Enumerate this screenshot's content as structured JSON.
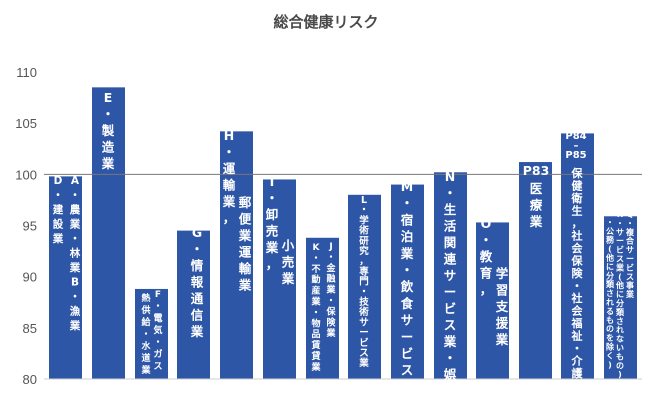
{
  "chart_data": {
    "type": "bar",
    "title": "総合健康リスク",
    "xlabel": "",
    "ylabel": "",
    "ylim": [
      80,
      112
    ],
    "yticks": [
      80,
      85,
      90,
      95,
      100,
      105,
      110
    ],
    "reference_line": 100,
    "bar_color": "#2e56a6",
    "categories": [
      "D・建設業",
      "A・農業・林業 B・漁業",
      "E・製造業",
      "F・電気・ガス 熱供給・水道業",
      "G・情報通信業",
      "H・運輸業，郵便業運輸業",
      "I・卸売業，小売業",
      "J・金融業・保険業 K・不動産業・物品賃貸業",
      "L・学術研究，専門・技術サービス業",
      "M・宿泊業・飲食サービス業",
      "N・生活関連サービス業・娯楽業",
      "O・教育，学習支援業",
      "P83 医療業",
      "P84-P85 保健衛生，社会保険・社会福祉・介護事業",
      "Q・複合サービス事業 R・サービス業(他に分類されないもの) S・公務(他に分類されるものを除く)"
    ],
    "values": [
      99.8,
      99.8,
      108.5,
      88.8,
      94.5,
      104.2,
      99.5,
      93.8,
      98.0,
      99.0,
      100.2,
      95.3,
      101.2,
      104.0,
      95.9
    ],
    "label_lines": [
      [
        "D",
        "・",
        "建",
        "設",
        "業"
      ],
      [
        "A",
        "・",
        "農",
        "業",
        "・",
        "林",
        "業",
        "B",
        "・",
        "漁",
        "業"
      ],
      [
        "E",
        "・",
        "製",
        "造",
        "業"
      ],
      [
        "F",
        "・",
        "電",
        "気",
        "・",
        "ガ",
        "ス"
      ],
      [
        "熱",
        "供",
        "給",
        "・",
        "水",
        "道",
        "業"
      ],
      [
        "G",
        "・",
        "情",
        "報",
        "通",
        "信",
        "業"
      ],
      [
        "H",
        "・",
        "運",
        "輸",
        "業",
        "，"
      ],
      [
        "郵",
        "便",
        "業",
        "運",
        "輸",
        "業"
      ],
      [
        "I",
        "・",
        "卸",
        "売",
        "業",
        "，"
      ],
      [
        "小",
        "売",
        "業"
      ],
      [
        "J",
        "・",
        "金",
        "融",
        "業",
        "・",
        "保",
        "険",
        "業"
      ],
      [
        "K",
        "・",
        "不",
        "動",
        "産",
        "業",
        "・",
        "物",
        "品",
        "賃",
        "貸",
        "業"
      ],
      [
        "L",
        "・",
        "学",
        "術",
        "研",
        "究",
        "，",
        "専",
        "門",
        "・",
        "技",
        "術",
        "サ",
        "ー",
        "ビ",
        "ス",
        "業"
      ],
      [
        "M",
        "・",
        "宿",
        "泊",
        "業",
        "・",
        "飲",
        "食",
        "サ",
        "ー",
        "ビ",
        "ス",
        "業"
      ],
      [
        "N",
        "・",
        "生",
        "活",
        "関",
        "連",
        "サ",
        "ー",
        "ビ",
        "ス",
        "業",
        "・",
        "娯",
        "楽",
        "業"
      ],
      [
        "O",
        "・",
        "教",
        "育",
        "，"
      ],
      [
        "学",
        "習",
        "支",
        "援",
        "業"
      ],
      [
        "P83"
      ],
      [
        "医",
        "療",
        "業"
      ],
      [
        "P84",
        "–",
        "P85"
      ],
      [
        "保",
        "健",
        "衛",
        "生",
        "，",
        "社",
        "会",
        "保",
        "険",
        "・",
        "社",
        "会",
        "福",
        "祉",
        "・",
        "介",
        "護",
        "事",
        "業"
      ],
      [
        "Q",
        "・",
        "複",
        "合",
        "サ",
        "ー",
        "ビ",
        "ス",
        "事",
        "業"
      ],
      [
        "R",
        "・",
        "サ",
        "ー",
        "ビ",
        "ス",
        "業",
        "(",
        "他",
        "に",
        "分",
        "類",
        "さ",
        "れ",
        "な",
        "い",
        "も",
        "の",
        ")"
      ],
      [
        "S",
        "・",
        "公",
        "務",
        "(",
        "他",
        "に",
        "分",
        "類",
        "さ",
        "れ",
        "る",
        "も",
        "の",
        "を",
        "除",
        "く",
        ")"
      ]
    ]
  }
}
